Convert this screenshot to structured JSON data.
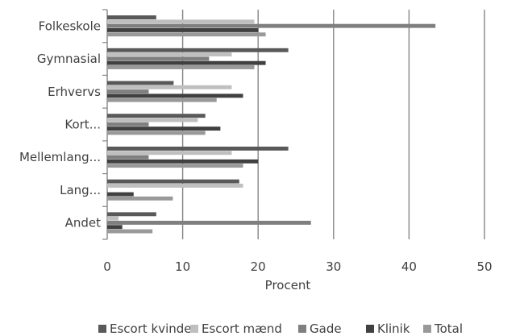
{
  "chart_data": {
    "type": "bar",
    "orientation": "horizontal",
    "categories": [
      "Folkeskole",
      "Gymnasial",
      "Erhvervs",
      "Kort...",
      "Mellemlang...",
      "Lang...",
      "Andet"
    ],
    "series": [
      {
        "name": "Escort kvinder",
        "color": "#595959",
        "values": [
          6.5,
          24,
          8.8,
          13,
          24,
          17.5,
          6.5
        ]
      },
      {
        "name": "Escort mænd",
        "color": "#bfbfbf",
        "values": [
          19.5,
          16.5,
          16.5,
          12,
          16.5,
          18,
          1.5
        ]
      },
      {
        "name": "Gade",
        "color": "#7f7f7f",
        "values": [
          43.5,
          13.5,
          5.5,
          5.5,
          5.5,
          0,
          27
        ]
      },
      {
        "name": "Klinik",
        "color": "#404040",
        "values": [
          20,
          21,
          18,
          15,
          20,
          3.5,
          2
        ]
      },
      {
        "name": "Total",
        "color": "#999999",
        "values": [
          21,
          19.5,
          14.5,
          13,
          18,
          8.7,
          6
        ]
      }
    ],
    "xlabel": "Procent",
    "ylabel": "",
    "xlim": [
      0,
      50
    ],
    "xticks": [
      0,
      10,
      20,
      30,
      40,
      50
    ],
    "grid": "vertical",
    "legend": "bottom"
  }
}
